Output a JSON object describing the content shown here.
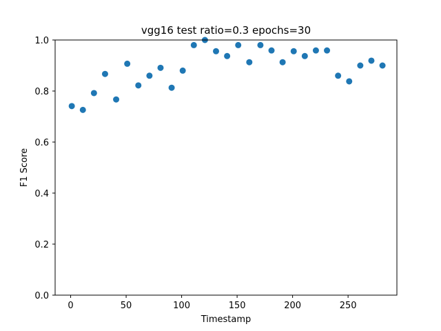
{
  "chart_data": {
    "type": "scatter",
    "title": "vgg16 test ratio=0.3 epochs=30",
    "xlabel": "Timestamp",
    "ylabel": "F1 Score",
    "xlim": [
      -14,
      294
    ],
    "ylim": [
      0.0,
      1.0
    ],
    "xticks": [
      0,
      50,
      100,
      150,
      200,
      250
    ],
    "yticks": [
      0.0,
      0.2,
      0.4,
      0.6,
      0.8,
      1.0
    ],
    "xtick_labels": [
      "0",
      "50",
      "100",
      "150",
      "200",
      "250"
    ],
    "ytick_labels": [
      "0.0",
      "0.2",
      "0.4",
      "0.6",
      "0.8",
      "1.0"
    ],
    "marker_color": "#1f77b4",
    "grid": false,
    "series": [
      {
        "name": "F1",
        "x": [
          1,
          11,
          21,
          31,
          41,
          51,
          61,
          71,
          81,
          91,
          101,
          111,
          121,
          131,
          141,
          151,
          161,
          171,
          181,
          191,
          201,
          211,
          221,
          231,
          241,
          251,
          261,
          271,
          281
        ],
        "y": [
          0.741,
          0.726,
          0.792,
          0.867,
          0.767,
          0.907,
          0.822,
          0.86,
          0.891,
          0.813,
          0.88,
          0.98,
          1.0,
          0.956,
          0.937,
          0.98,
          0.913,
          0.98,
          0.959,
          0.913,
          0.956,
          0.937,
          0.959,
          0.959,
          0.86,
          0.838,
          0.9,
          0.919,
          0.9
        ]
      }
    ]
  }
}
